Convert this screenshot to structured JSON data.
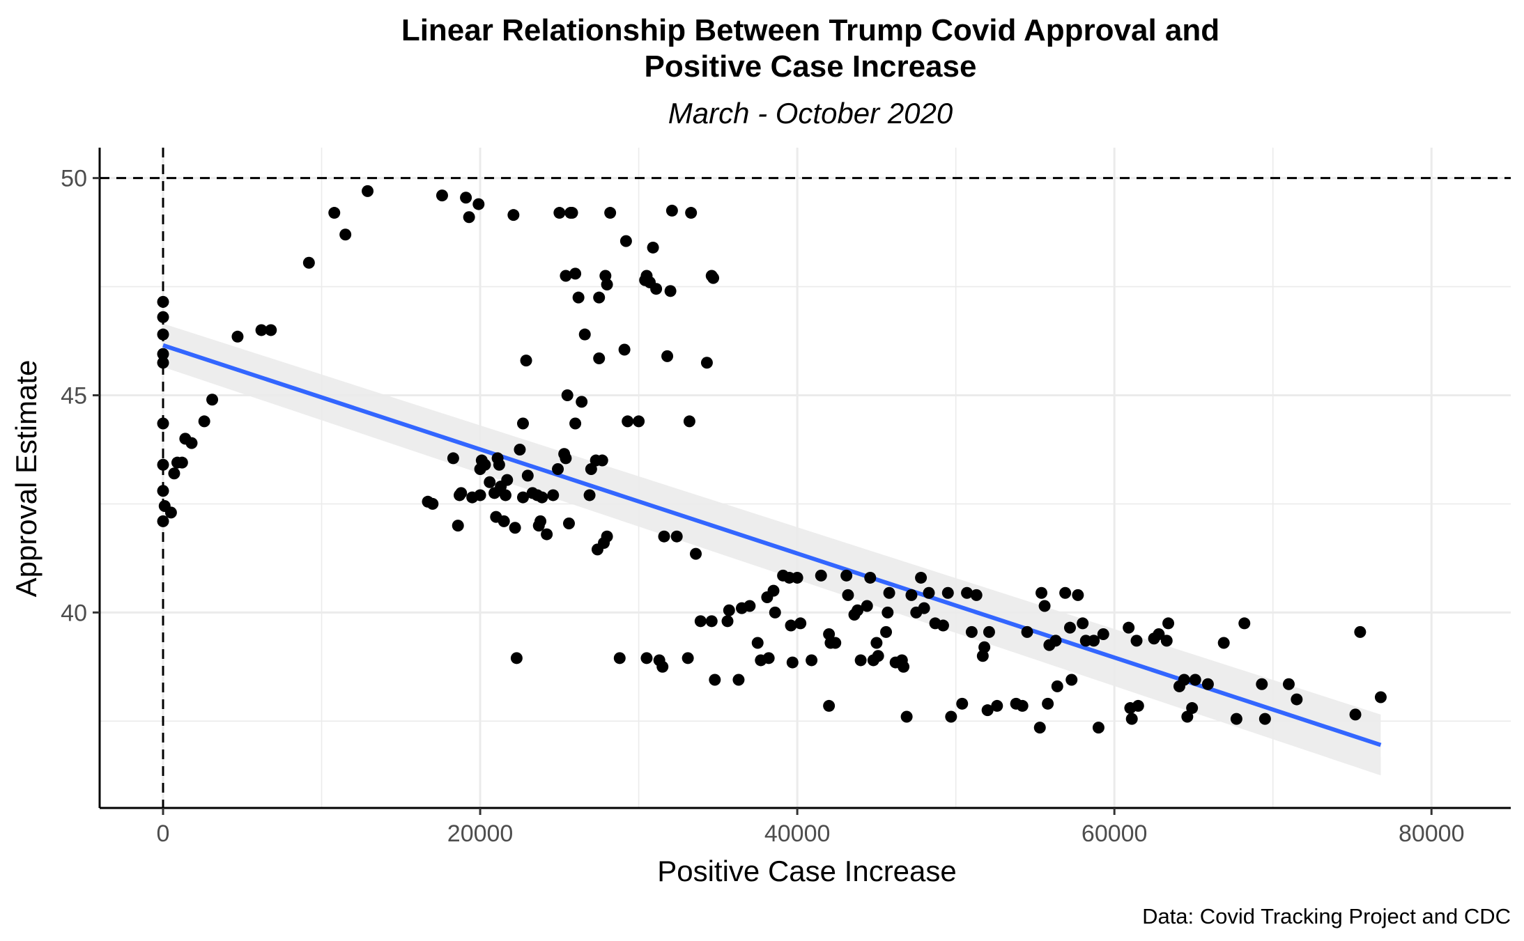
{
  "chart_data": {
    "type": "scatter",
    "title_line1": "Linear Relationship Between Trump Covid Approval and",
    "title_line2": "Positive Case Increase",
    "subtitle": "March - October 2020",
    "xlabel": "Positive Case Increase",
    "ylabel": "Approval Estimate",
    "caption": "Data: Covid Tracking Project and CDC",
    "xlim": [
      -4000,
      85000
    ],
    "ylim": [
      35.5,
      50.7
    ],
    "x_ticks": [
      0,
      20000,
      40000,
      60000,
      80000
    ],
    "x_tick_labels": [
      "0",
      "20000",
      "40000",
      "60000",
      "80000"
    ],
    "y_ticks": [
      40,
      45,
      50
    ],
    "y_tick_labels": [
      "40",
      "45",
      "50"
    ],
    "grid": true,
    "reference_lines": {
      "hline": 50,
      "vline": 0,
      "style": "dashed"
    },
    "colors": {
      "points": "#000000",
      "fit_line": "#3366ff",
      "ribbon": "#ebebeb",
      "grid": "#ebebeb"
    },
    "fit": {
      "x": [
        0,
        76800
      ],
      "y": [
        46.15,
        36.95
      ],
      "ci_upper": [
        46.65,
        37.65
      ],
      "ci_lower": [
        45.65,
        36.25
      ]
    },
    "points": [
      [
        0,
        47.15
      ],
      [
        0,
        46.8
      ],
      [
        0,
        46.4
      ],
      [
        0,
        45.95
      ],
      [
        0,
        45.75
      ],
      [
        0,
        44.35
      ],
      [
        0,
        43.4
      ],
      [
        0,
        42.8
      ],
      [
        100,
        42.45
      ],
      [
        0,
        42.1
      ],
      [
        500,
        42.3
      ],
      [
        700,
        43.2
      ],
      [
        900,
        43.45
      ],
      [
        1200,
        43.45
      ],
      [
        1400,
        44.0
      ],
      [
        1800,
        43.9
      ],
      [
        2600,
        44.4
      ],
      [
        3100,
        44.9
      ],
      [
        4700,
        46.35
      ],
      [
        6200,
        46.5
      ],
      [
        6800,
        46.5
      ],
      [
        9200,
        48.05
      ],
      [
        10800,
        49.2
      ],
      [
        11500,
        48.7
      ],
      [
        12900,
        49.7
      ],
      [
        16700,
        42.55
      ],
      [
        17000,
        42.5
      ],
      [
        17600,
        49.6
      ],
      [
        18300,
        43.55
      ],
      [
        18600,
        42.0
      ],
      [
        18700,
        42.7
      ],
      [
        18800,
        42.75
      ],
      [
        19100,
        49.55
      ],
      [
        19300,
        49.1
      ],
      [
        19500,
        42.65
      ],
      [
        19900,
        49.4
      ],
      [
        20000,
        42.7
      ],
      [
        20000,
        43.3
      ],
      [
        20100,
        43.5
      ],
      [
        20300,
        43.4
      ],
      [
        20600,
        43.0
      ],
      [
        20900,
        42.75
      ],
      [
        21000,
        42.2
      ],
      [
        21100,
        43.55
      ],
      [
        21200,
        43.4
      ],
      [
        21300,
        42.9
      ],
      [
        21500,
        42.1
      ],
      [
        21600,
        42.7
      ],
      [
        21700,
        43.05
      ],
      [
        22100,
        49.15
      ],
      [
        22200,
        41.95
      ],
      [
        22300,
        38.95
      ],
      [
        22500,
        43.75
      ],
      [
        22700,
        44.35
      ],
      [
        22900,
        45.8
      ],
      [
        22700,
        42.65
      ],
      [
        23000,
        43.15
      ],
      [
        23300,
        42.75
      ],
      [
        23600,
        42.7
      ],
      [
        23700,
        42.0
      ],
      [
        23800,
        42.1
      ],
      [
        23900,
        42.65
      ],
      [
        24200,
        41.8
      ],
      [
        24600,
        42.7
      ],
      [
        24900,
        43.3
      ],
      [
        25000,
        49.2
      ],
      [
        25300,
        43.65
      ],
      [
        25400,
        43.55
      ],
      [
        25400,
        47.75
      ],
      [
        25500,
        45.0
      ],
      [
        25600,
        42.05
      ],
      [
        25700,
        49.2
      ],
      [
        25800,
        49.2
      ],
      [
        26000,
        47.8
      ],
      [
        26000,
        44.35
      ],
      [
        26200,
        47.25
      ],
      [
        26400,
        44.85
      ],
      [
        26600,
        46.4
      ],
      [
        26900,
        42.7
      ],
      [
        27000,
        43.3
      ],
      [
        27300,
        43.5
      ],
      [
        27400,
        41.45
      ],
      [
        27500,
        45.85
      ],
      [
        27500,
        47.25
      ],
      [
        27700,
        43.5
      ],
      [
        27800,
        41.6
      ],
      [
        27900,
        47.75
      ],
      [
        28000,
        47.55
      ],
      [
        28000,
        41.75
      ],
      [
        28200,
        49.2
      ],
      [
        28800,
        38.95
      ],
      [
        29100,
        46.05
      ],
      [
        29200,
        48.55
      ],
      [
        29300,
        44.4
      ],
      [
        30000,
        44.4
      ],
      [
        30400,
        47.65
      ],
      [
        30500,
        38.95
      ],
      [
        30500,
        47.75
      ],
      [
        30700,
        47.6
      ],
      [
        30900,
        48.4
      ],
      [
        31100,
        47.45
      ],
      [
        31300,
        38.9
      ],
      [
        31500,
        38.75
      ],
      [
        31600,
        41.75
      ],
      [
        31800,
        45.9
      ],
      [
        32000,
        47.4
      ],
      [
        32100,
        49.25
      ],
      [
        32400,
        41.75
      ],
      [
        33100,
        38.95
      ],
      [
        33200,
        44.4
      ],
      [
        33300,
        49.2
      ],
      [
        33600,
        41.35
      ],
      [
        34300,
        45.75
      ],
      [
        34600,
        47.75
      ],
      [
        34700,
        47.7
      ],
      [
        33900,
        39.8
      ],
      [
        34600,
        39.8
      ],
      [
        34800,
        38.45
      ],
      [
        35600,
        39.8
      ],
      [
        35700,
        40.05
      ],
      [
        36300,
        38.45
      ],
      [
        36500,
        40.1
      ],
      [
        37000,
        40.15
      ],
      [
        37500,
        39.3
      ],
      [
        37700,
        38.9
      ],
      [
        38100,
        40.35
      ],
      [
        38200,
        38.95
      ],
      [
        38500,
        40.5
      ],
      [
        38600,
        40.0
      ],
      [
        39100,
        40.85
      ],
      [
        39500,
        40.8
      ],
      [
        39600,
        39.7
      ],
      [
        39700,
        38.85
      ],
      [
        40000,
        40.8
      ],
      [
        40200,
        39.75
      ],
      [
        40900,
        38.9
      ],
      [
        41500,
        40.85
      ],
      [
        42000,
        39.5
      ],
      [
        42000,
        37.85
      ],
      [
        42100,
        39.3
      ],
      [
        42400,
        39.3
      ],
      [
        43100,
        40.85
      ],
      [
        43200,
        40.4
      ],
      [
        43600,
        39.95
      ],
      [
        43800,
        40.05
      ],
      [
        44000,
        38.9
      ],
      [
        44400,
        40.15
      ],
      [
        44600,
        40.8
      ],
      [
        44800,
        38.9
      ],
      [
        45000,
        39.3
      ],
      [
        45100,
        39.0
      ],
      [
        45600,
        39.55
      ],
      [
        45700,
        40.0
      ],
      [
        45800,
        40.45
      ],
      [
        46200,
        38.85
      ],
      [
        46600,
        38.9
      ],
      [
        46700,
        38.75
      ],
      [
        46900,
        37.6
      ],
      [
        47200,
        40.4
      ],
      [
        47500,
        40.0
      ],
      [
        47800,
        40.8
      ],
      [
        48000,
        40.1
      ],
      [
        48300,
        40.45
      ],
      [
        48700,
        39.75
      ],
      [
        49200,
        39.7
      ],
      [
        49500,
        40.45
      ],
      [
        49700,
        37.6
      ],
      [
        50400,
        37.9
      ],
      [
        50700,
        40.45
      ],
      [
        51000,
        39.55
      ],
      [
        51300,
        40.4
      ],
      [
        51700,
        39.0
      ],
      [
        51800,
        39.2
      ],
      [
        52000,
        37.75
      ],
      [
        52100,
        39.55
      ],
      [
        52600,
        37.85
      ],
      [
        53800,
        37.9
      ],
      [
        54200,
        37.85
      ],
      [
        54500,
        39.55
      ],
      [
        55300,
        37.35
      ],
      [
        55400,
        40.45
      ],
      [
        55600,
        40.15
      ],
      [
        55800,
        37.9
      ],
      [
        55900,
        39.25
      ],
      [
        56300,
        39.35
      ],
      [
        56400,
        38.3
      ],
      [
        56900,
        40.45
      ],
      [
        57200,
        39.65
      ],
      [
        57300,
        38.45
      ],
      [
        57700,
        40.4
      ],
      [
        58000,
        39.75
      ],
      [
        58200,
        39.35
      ],
      [
        58700,
        39.35
      ],
      [
        59000,
        37.35
      ],
      [
        59300,
        39.5
      ],
      [
        60900,
        39.65
      ],
      [
        61000,
        37.8
      ],
      [
        61100,
        37.55
      ],
      [
        61400,
        39.35
      ],
      [
        61500,
        37.85
      ],
      [
        62500,
        39.4
      ],
      [
        62800,
        39.5
      ],
      [
        63300,
        39.35
      ],
      [
        63400,
        39.75
      ],
      [
        64100,
        38.3
      ],
      [
        64400,
        38.45
      ],
      [
        64600,
        37.6
      ],
      [
        64900,
        37.8
      ],
      [
        65100,
        38.45
      ],
      [
        65900,
        38.35
      ],
      [
        66900,
        39.3
      ],
      [
        67700,
        37.55
      ],
      [
        68200,
        39.75
      ],
      [
        69300,
        38.35
      ],
      [
        69500,
        37.55
      ],
      [
        71000,
        38.35
      ],
      [
        71500,
        38.0
      ],
      [
        75200,
        37.65
      ],
      [
        75500,
        39.55
      ],
      [
        76800,
        38.05
      ]
    ]
  }
}
